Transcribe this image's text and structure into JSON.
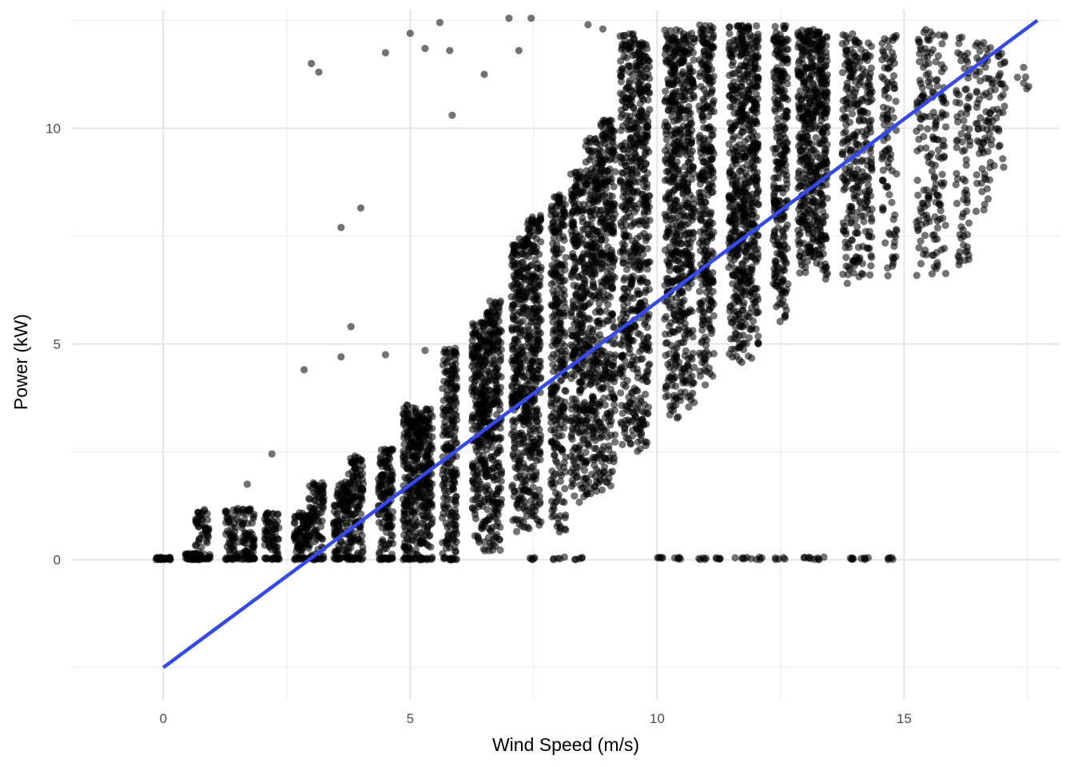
{
  "chart_data": {
    "type": "scatter",
    "title": "",
    "xlabel": "Wind Speed (m/s)",
    "ylabel": "Power (kW)",
    "xlim": [
      -1.85,
      18.15
    ],
    "ylim": [
      -3.25,
      12.75
    ],
    "x_ticks": [
      0,
      5,
      10,
      15
    ],
    "x_tick_labels": [
      "0",
      "5",
      "10",
      "15"
    ],
    "y_ticks": [
      0,
      5,
      10
    ],
    "y_tick_labels": [
      "0",
      "5",
      "10"
    ],
    "grid": true,
    "legend": "none",
    "point_color": "#000000",
    "point_alpha": 0.55,
    "line_color": "#3349f5",
    "trend_line": {
      "type": "linear-fit",
      "x": [
        0,
        17.7
      ],
      "y": [
        -2.5,
        12.5
      ]
    },
    "columns": [
      {
        "x": 0.0,
        "ymin": 0,
        "ymax": 0.05,
        "n": 20
      },
      {
        "x": 0.6,
        "ymin": 0,
        "ymax": 0.15,
        "n": 30
      },
      {
        "x": 0.8,
        "ymin": 0,
        "ymax": 1.2,
        "n": 50
      },
      {
        "x": 1.4,
        "ymin": 0,
        "ymax": 1.2,
        "n": 50
      },
      {
        "x": 1.7,
        "ymin": 0,
        "ymax": 1.2,
        "n": 60
      },
      {
        "x": 2.2,
        "ymin": 0,
        "ymax": 1.1,
        "n": 60
      },
      {
        "x": 2.8,
        "ymin": 0,
        "ymax": 1.1,
        "n": 80
      },
      {
        "x": 3.1,
        "ymin": 0,
        "ymax": 1.8,
        "n": 90
      },
      {
        "x": 3.6,
        "ymin": 0,
        "ymax": 1.8,
        "n": 100
      },
      {
        "x": 3.9,
        "ymin": 0,
        "ymax": 2.4,
        "n": 120
      },
      {
        "x": 4.5,
        "ymin": 0,
        "ymax": 2.6,
        "n": 140
      },
      {
        "x": 5.0,
        "ymin": 0,
        "ymax": 3.6,
        "n": 200
      },
      {
        "x": 5.3,
        "ymin": 0,
        "ymax": 3.5,
        "n": 200
      },
      {
        "x": 5.8,
        "ymin": 0,
        "ymax": 4.9,
        "n": 220
      },
      {
        "x": 6.4,
        "ymin": 0.2,
        "ymax": 5.5,
        "n": 260
      },
      {
        "x": 6.7,
        "ymin": 0.2,
        "ymax": 6.0,
        "n": 260
      },
      {
        "x": 7.2,
        "ymin": 0.6,
        "ymax": 7.5,
        "n": 300
      },
      {
        "x": 7.5,
        "ymin": 0.6,
        "ymax": 8.0,
        "n": 300
      },
      {
        "x": 8.0,
        "ymin": 0.6,
        "ymax": 8.5,
        "n": 300
      },
      {
        "x": 8.4,
        "ymin": 1.2,
        "ymax": 9.0,
        "n": 300
      },
      {
        "x": 8.7,
        "ymin": 1.5,
        "ymax": 9.8,
        "n": 300
      },
      {
        "x": 9.0,
        "ymin": 1.5,
        "ymax": 10.2,
        "n": 300
      },
      {
        "x": 9.4,
        "ymin": 2.6,
        "ymax": 12.2,
        "n": 320
      },
      {
        "x": 9.7,
        "ymin": 2.4,
        "ymax": 12.0,
        "n": 320
      },
      {
        "x": 10.3,
        "ymin": 3.2,
        "ymax": 12.3,
        "n": 330
      },
      {
        "x": 10.6,
        "ymin": 3.5,
        "ymax": 12.3,
        "n": 320
      },
      {
        "x": 11.0,
        "ymin": 4.0,
        "ymax": 12.4,
        "n": 320
      },
      {
        "x": 11.6,
        "ymin": 4.4,
        "ymax": 12.4,
        "n": 320
      },
      {
        "x": 11.9,
        "ymin": 4.6,
        "ymax": 12.4,
        "n": 320
      },
      {
        "x": 12.5,
        "ymin": 5.5,
        "ymax": 12.4,
        "n": 280
      },
      {
        "x": 13.0,
        "ymin": 6.5,
        "ymax": 12.3,
        "n": 260
      },
      {
        "x": 13.3,
        "ymin": 6.5,
        "ymax": 12.3,
        "n": 260
      },
      {
        "x": 13.9,
        "ymin": 6.3,
        "ymax": 12.2,
        "n": 160
      },
      {
        "x": 14.2,
        "ymin": 6.5,
        "ymax": 12.0,
        "n": 140
      },
      {
        "x": 14.7,
        "ymin": 6.5,
        "ymax": 12.2,
        "n": 100
      },
      {
        "x": 15.4,
        "ymin": 6.5,
        "ymax": 12.3,
        "n": 90
      },
      {
        "x": 15.7,
        "ymin": 6.3,
        "ymax": 12.3,
        "n": 90
      },
      {
        "x": 16.2,
        "ymin": 6.5,
        "ymax": 12.2,
        "n": 80
      },
      {
        "x": 16.6,
        "ymin": 8.0,
        "ymax": 12.0,
        "n": 70
      },
      {
        "x": 16.9,
        "ymin": 8.4,
        "ymax": 11.8,
        "n": 40
      },
      {
        "x": 17.4,
        "ymin": 10.8,
        "ymax": 11.5,
        "n": 6
      }
    ],
    "zero_cluster_x": [
      10.1,
      10.4,
      10.9,
      11.2,
      11.7,
      12.0,
      12.5,
      13.0,
      13.3,
      13.9,
      14.2,
      14.7,
      8.0,
      8.4,
      7.5
    ],
    "outliers": [
      [
        3.0,
        11.5
      ],
      [
        3.15,
        11.3
      ],
      [
        4.5,
        11.75
      ],
      [
        5.0,
        12.2
      ],
      [
        5.3,
        11.85
      ],
      [
        5.6,
        12.45
      ],
      [
        5.8,
        11.8
      ],
      [
        5.85,
        10.3
      ],
      [
        6.5,
        11.25
      ],
      [
        7.0,
        12.55
      ],
      [
        7.2,
        11.8
      ],
      [
        7.45,
        12.55
      ],
      [
        3.8,
        5.4
      ],
      [
        4.0,
        8.15
      ],
      [
        3.6,
        7.7
      ],
      [
        2.2,
        2.45
      ],
      [
        2.85,
        4.4
      ],
      [
        3.6,
        4.7
      ],
      [
        4.5,
        4.75
      ],
      [
        1.7,
        1.75
      ],
      [
        5.3,
        4.85
      ],
      [
        8.6,
        12.4
      ],
      [
        8.9,
        12.3
      ]
    ]
  }
}
